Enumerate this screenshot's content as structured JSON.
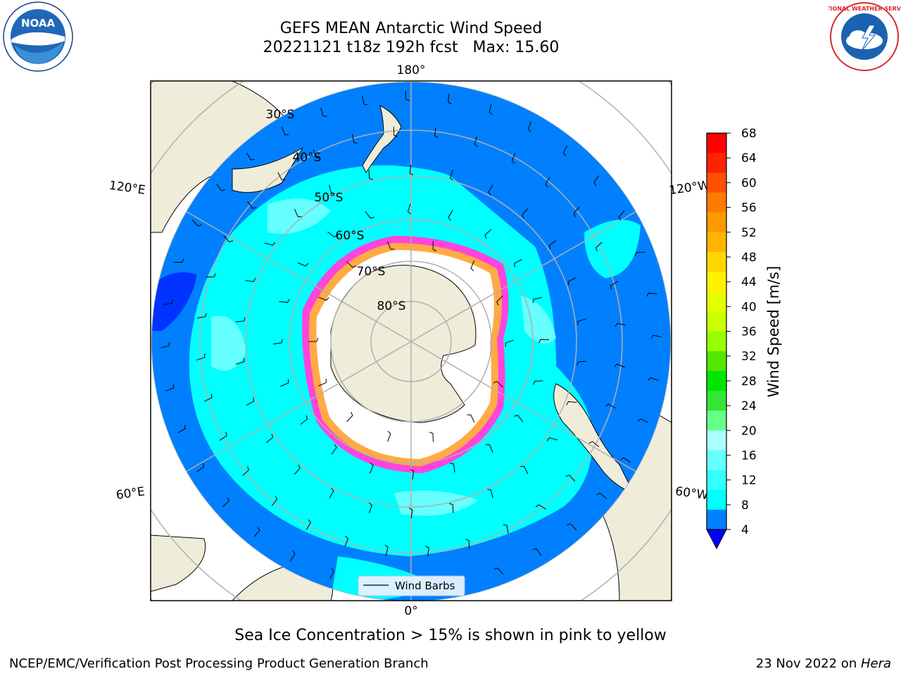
{
  "title": {
    "line1": "GEFS MEAN Antarctic Wind Speed",
    "line2": "20221121 t18z 192h fcst   Max: 15.60"
  },
  "map": {
    "projection": "south polar stereographic",
    "longitude_labels": [
      "180°",
      "120°E",
      "120°W",
      "60°E",
      "60°W",
      "0°"
    ],
    "latitude_labels": [
      "30°S",
      "40°S",
      "50°S",
      "60°S",
      "70°S",
      "80°S"
    ],
    "legend_label": "Wind Barbs"
  },
  "colorbar": {
    "label": "Wind Speed [m/s]",
    "ticks": [
      "68",
      "64",
      "60",
      "56",
      "52",
      "48",
      "44",
      "40",
      "36",
      "32",
      "28",
      "24",
      "20",
      "16",
      "12",
      "8",
      "4"
    ],
    "colors_top_to_bottom": [
      "#ff0000",
      "#ff2200",
      "#ff5000",
      "#ff7a00",
      "#ff9900",
      "#ffb400",
      "#ffd700",
      "#fff200",
      "#e6ff00",
      "#ccff00",
      "#99ff00",
      "#55e600",
      "#00e600",
      "#33e633",
      "#66ff88",
      "#aaffff",
      "#66ffff",
      "#33ffff",
      "#00ffff",
      "#0080ff"
    ],
    "extend_color": "#0000ff"
  },
  "caption": "Sea Ice Concentration > 15% is shown in pink to yellow",
  "footer": {
    "left": "NCEP/EMC/Verification Post Processing Product Generation Branch",
    "right_prefix": "23 Nov 2022 on ",
    "right_italic": "Hera"
  },
  "logos": {
    "noaa_text": "NOAA",
    "nws_text": "NATIONAL WEATHER SERVICE"
  }
}
